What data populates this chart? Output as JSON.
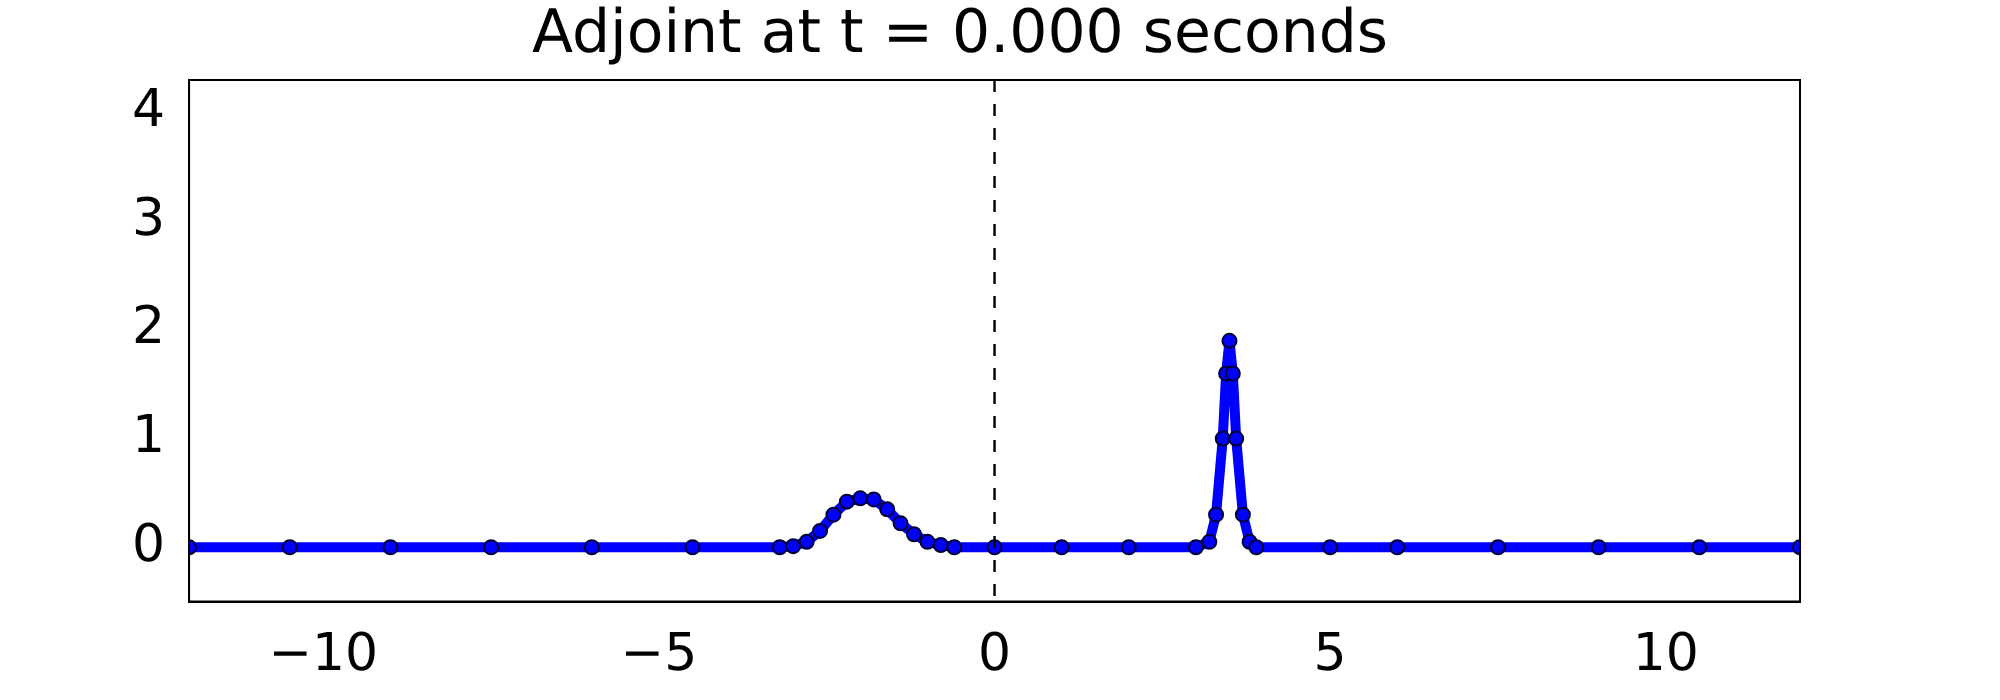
{
  "chart_data": {
    "type": "line",
    "title": "Adjoint at t = 0.000 seconds",
    "x": [
      -12,
      -10.5,
      -9,
      -7.5,
      -6,
      -4.5,
      -3.2,
      -3,
      -2.8,
      -2.6,
      -2.4,
      -2.2,
      -2,
      -1.8,
      -1.6,
      -1.4,
      -1.2,
      -1,
      -0.8,
      -0.6,
      0,
      1,
      2,
      3,
      3.2,
      3.3,
      3.4,
      3.45,
      3.5,
      3.55,
      3.6,
      3.7,
      3.8,
      3.9,
      5,
      6,
      7.5,
      9,
      10.5,
      12
    ],
    "series": [
      {
        "color": "#0000ff",
        "values": [
          0,
          0,
          0,
          0,
          0,
          0,
          0,
          0.01,
          0.05,
          0.15,
          0.3,
          0.42,
          0.45,
          0.44,
          0.35,
          0.22,
          0.12,
          0.05,
          0.02,
          0,
          0,
          0,
          0,
          0,
          0.05,
          0.3,
          1.0,
          1.6,
          1.9,
          1.6,
          1.0,
          0.3,
          0.05,
          0,
          0,
          0,
          0,
          0,
          0,
          0
        ]
      }
    ],
    "xlim": [
      -12,
      12
    ],
    "xticks": [
      {
        "value": -10,
        "label": "−10"
      },
      {
        "value": -5,
        "label": "−5"
      },
      0,
      5,
      10
    ],
    "ylim": [
      -0.5,
      4.3
    ],
    "yticks": [
      0,
      1,
      2,
      3,
      4
    ],
    "ref_lines": [
      {
        "axis": "x",
        "value": 0,
        "color": "#000000",
        "line_style": "dashed"
      }
    ],
    "marker": "circle",
    "grid": false,
    "legend": false
  }
}
